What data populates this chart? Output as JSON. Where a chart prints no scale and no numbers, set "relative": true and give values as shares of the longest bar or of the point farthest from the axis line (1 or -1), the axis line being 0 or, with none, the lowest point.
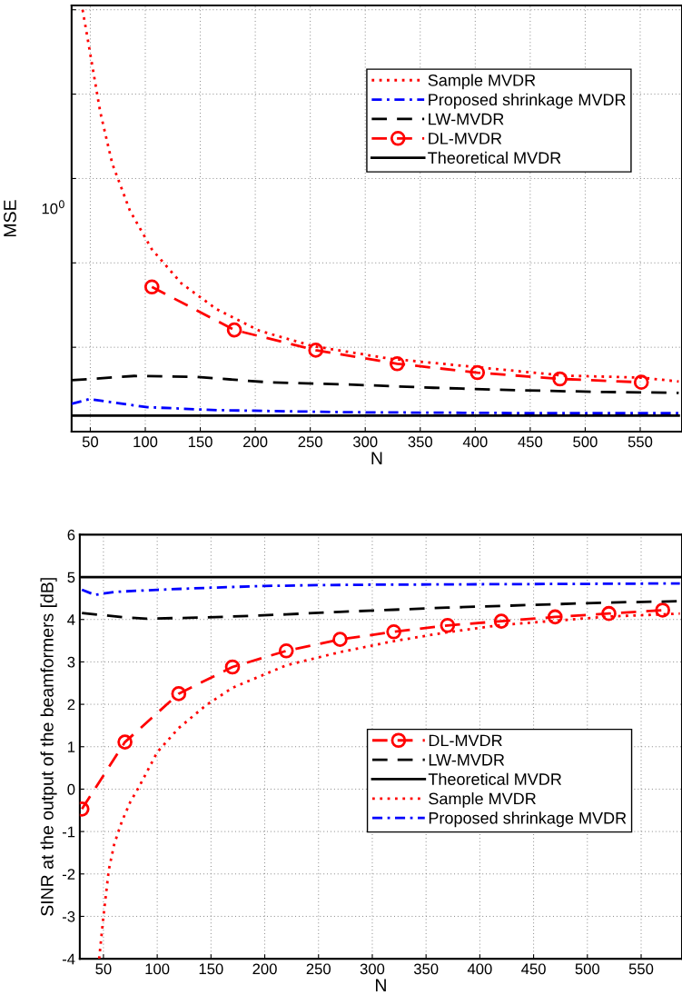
{
  "chart_data": [
    {
      "type": "line",
      "relative": true,
      "xlabel": "N",
      "ylabel": "MSE",
      "xlim": [
        33,
        588
      ],
      "xticks": [
        50,
        100,
        150,
        200,
        250,
        300,
        350,
        400,
        450,
        500,
        550
      ],
      "grid": true,
      "legend": "top right",
      "tick_labels": "x",
      "annotations": [
        "10$^{0}$"
      ],
      "series": [
        {
          "name": "Sample MVDR",
          "color": "#ff0000",
          "line_style": "dotted",
          "x": [
            43,
            49,
            59,
            70,
            86,
            106,
            133,
            165,
            204,
            252,
            322,
            401,
            480,
            551,
            585
          ],
          "values": [
            1.0,
            0.91,
            0.758,
            0.635,
            0.524,
            0.432,
            0.351,
            0.29,
            0.239,
            0.203,
            0.173,
            0.153,
            0.133,
            0.128,
            0.119
          ]
        },
        {
          "name": "Proposed shrinkage MVDR",
          "color": "#0000ff",
          "line_style": "dashdot",
          "x": [
            33,
            49,
            102,
            165,
            283,
            440,
            585
          ],
          "values": [
            0.066,
            0.077,
            0.058,
            0.051,
            0.046,
            0.044,
            0.044
          ]
        },
        {
          "name": "LW-MVDR",
          "color": "#000000",
          "line_style": "dashed",
          "x": [
            33,
            90,
            145,
            212,
            283,
            362,
            440,
            519,
            585
          ],
          "values": [
            0.122,
            0.132,
            0.13,
            0.117,
            0.112,
            0.104,
            0.098,
            0.094,
            0.092
          ]
        },
        {
          "name": "DL-MVDR",
          "color": "#ff0000",
          "line_style": "dashed",
          "marker": "circle",
          "x": [
            106,
            181,
            255,
            329,
            402,
            477,
            551
          ],
          "values": [
            0.343,
            0.241,
            0.193,
            0.161,
            0.14,
            0.125,
            0.117
          ]
        },
        {
          "name": "Theoretical MVDR",
          "color": "#000000",
          "line_style": "solid",
          "x": [
            33,
            585
          ],
          "values": [
            0.038,
            0.038
          ]
        }
      ]
    },
    {
      "type": "line",
      "xlabel": "N",
      "ylabel": "SINR at the output of the beamformers [dB]",
      "xlim": [
        28,
        588
      ],
      "xticks": [
        50,
        100,
        150,
        200,
        250,
        300,
        350,
        400,
        450,
        500,
        550
      ],
      "ylim": [
        -4,
        6
      ],
      "yticks": [
        -4,
        -3,
        -2,
        -1,
        0,
        1,
        2,
        3,
        4,
        5,
        6
      ],
      "grid": true,
      "legend": "right",
      "series": [
        {
          "name": "DL-MVDR",
          "color": "#ff0000",
          "line_style": "dashed",
          "marker": "circle",
          "x": [
            30,
            70,
            120,
            170,
            220,
            270,
            320,
            370,
            420,
            470,
            520,
            570
          ],
          "values": [
            -0.47,
            1.11,
            2.25,
            2.88,
            3.26,
            3.53,
            3.71,
            3.86,
            3.96,
            4.06,
            4.14,
            4.22
          ]
        },
        {
          "name": "LW-MVDR",
          "color": "#000000",
          "line_style": "dashed",
          "x": [
            30,
            70,
            90,
            130,
            170,
            220,
            270,
            320,
            370,
            420,
            470,
            520,
            586
          ],
          "values": [
            4.15,
            4.05,
            4.02,
            4.04,
            4.07,
            4.12,
            4.18,
            4.23,
            4.28,
            4.32,
            4.36,
            4.4,
            4.43
          ]
        },
        {
          "name": "Theoretical MVDR",
          "color": "#000000",
          "line_style": "solid",
          "x": [
            30,
            586
          ],
          "values": [
            5.0,
            5.0
          ]
        },
        {
          "name": "Sample MVDR",
          "color": "#ff0000",
          "line_style": "dotted",
          "x": [
            46,
            50,
            55,
            60,
            67,
            75,
            83,
            100,
            120,
            145,
            170,
            220,
            270,
            320,
            370,
            420,
            470,
            520,
            570,
            586
          ],
          "values": [
            -4,
            -3.0,
            -1.9,
            -1.3,
            -0.77,
            -0.3,
            0.05,
            0.87,
            1.44,
            1.97,
            2.39,
            2.92,
            3.23,
            3.49,
            3.7,
            3.87,
            3.97,
            4.07,
            4.12,
            4.14
          ]
        },
        {
          "name": "Proposed shrinkage MVDR",
          "color": "#0000ff",
          "line_style": "dashdot",
          "x": [
            30,
            42,
            60,
            100,
            150,
            200,
            250,
            300,
            400,
            500,
            586
          ],
          "values": [
            4.7,
            4.58,
            4.65,
            4.7,
            4.75,
            4.79,
            4.81,
            4.82,
            4.83,
            4.84,
            4.85
          ]
        }
      ]
    }
  ]
}
